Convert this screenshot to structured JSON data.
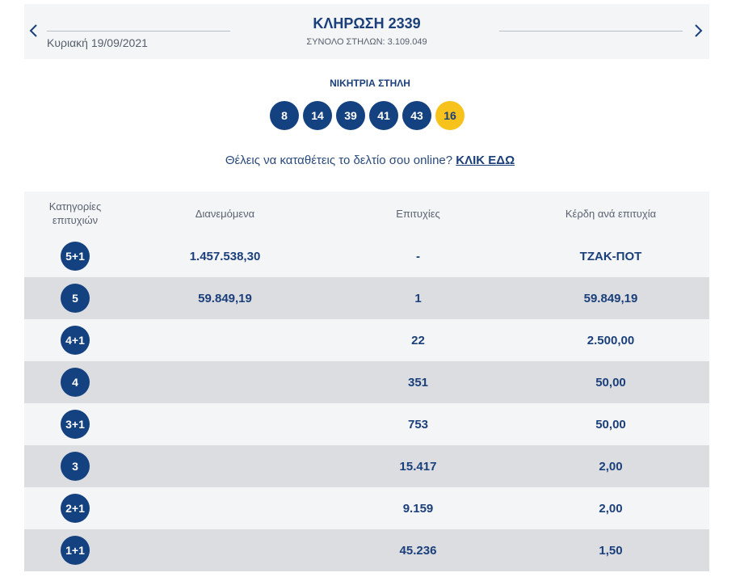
{
  "header": {
    "title": "ΚΛΗΡΩΣΗ 2339",
    "total_columns": "ΣΥΝΟΛΟ ΣΤΗΛΩΝ: 3.109.049",
    "date": "Κυριακή 19/09/2021",
    "prev_icon": "chevron-left-icon",
    "next_icon": "chevron-right-icon"
  },
  "winning": {
    "title": "ΝΙΚΗΤΡΙΑ ΣΤΗΛΗ",
    "numbers": [
      "8",
      "14",
      "39",
      "41",
      "43"
    ],
    "bonus": "16",
    "colors": {
      "ball": "#14417f",
      "bonus": "#f6c21b"
    }
  },
  "online": {
    "text": "Θέλεις να καταθέτεις το δελτίο σου online?",
    "link": "ΚΛΙΚ ΕΔΩ"
  },
  "table": {
    "headers": {
      "category_line1": "Κατηγορίες",
      "category_line2": "επιτυχιών",
      "distributed": "Διανεμόμενα",
      "wins": "Επιτυχίες",
      "prize": "Κέρδη ανά επιτυχία"
    },
    "rows": [
      {
        "category": "5+1",
        "distributed": "1.457.538,30",
        "wins": "-",
        "prize": "ΤΖΑΚ-ΠΟΤ"
      },
      {
        "category": "5",
        "distributed": "59.849,19",
        "wins": "1",
        "prize": "59.849,19"
      },
      {
        "category": "4+1",
        "distributed": "",
        "wins": "22",
        "prize": "2.500,00"
      },
      {
        "category": "4",
        "distributed": "",
        "wins": "351",
        "prize": "50,00"
      },
      {
        "category": "3+1",
        "distributed": "",
        "wins": "753",
        "prize": "50,00"
      },
      {
        "category": "3",
        "distributed": "",
        "wins": "15.417",
        "prize": "2,00"
      },
      {
        "category": "2+1",
        "distributed": "",
        "wins": "9.159",
        "prize": "2,00"
      },
      {
        "category": "1+1",
        "distributed": "",
        "wins": "45.236",
        "prize": "1,50"
      }
    ]
  }
}
